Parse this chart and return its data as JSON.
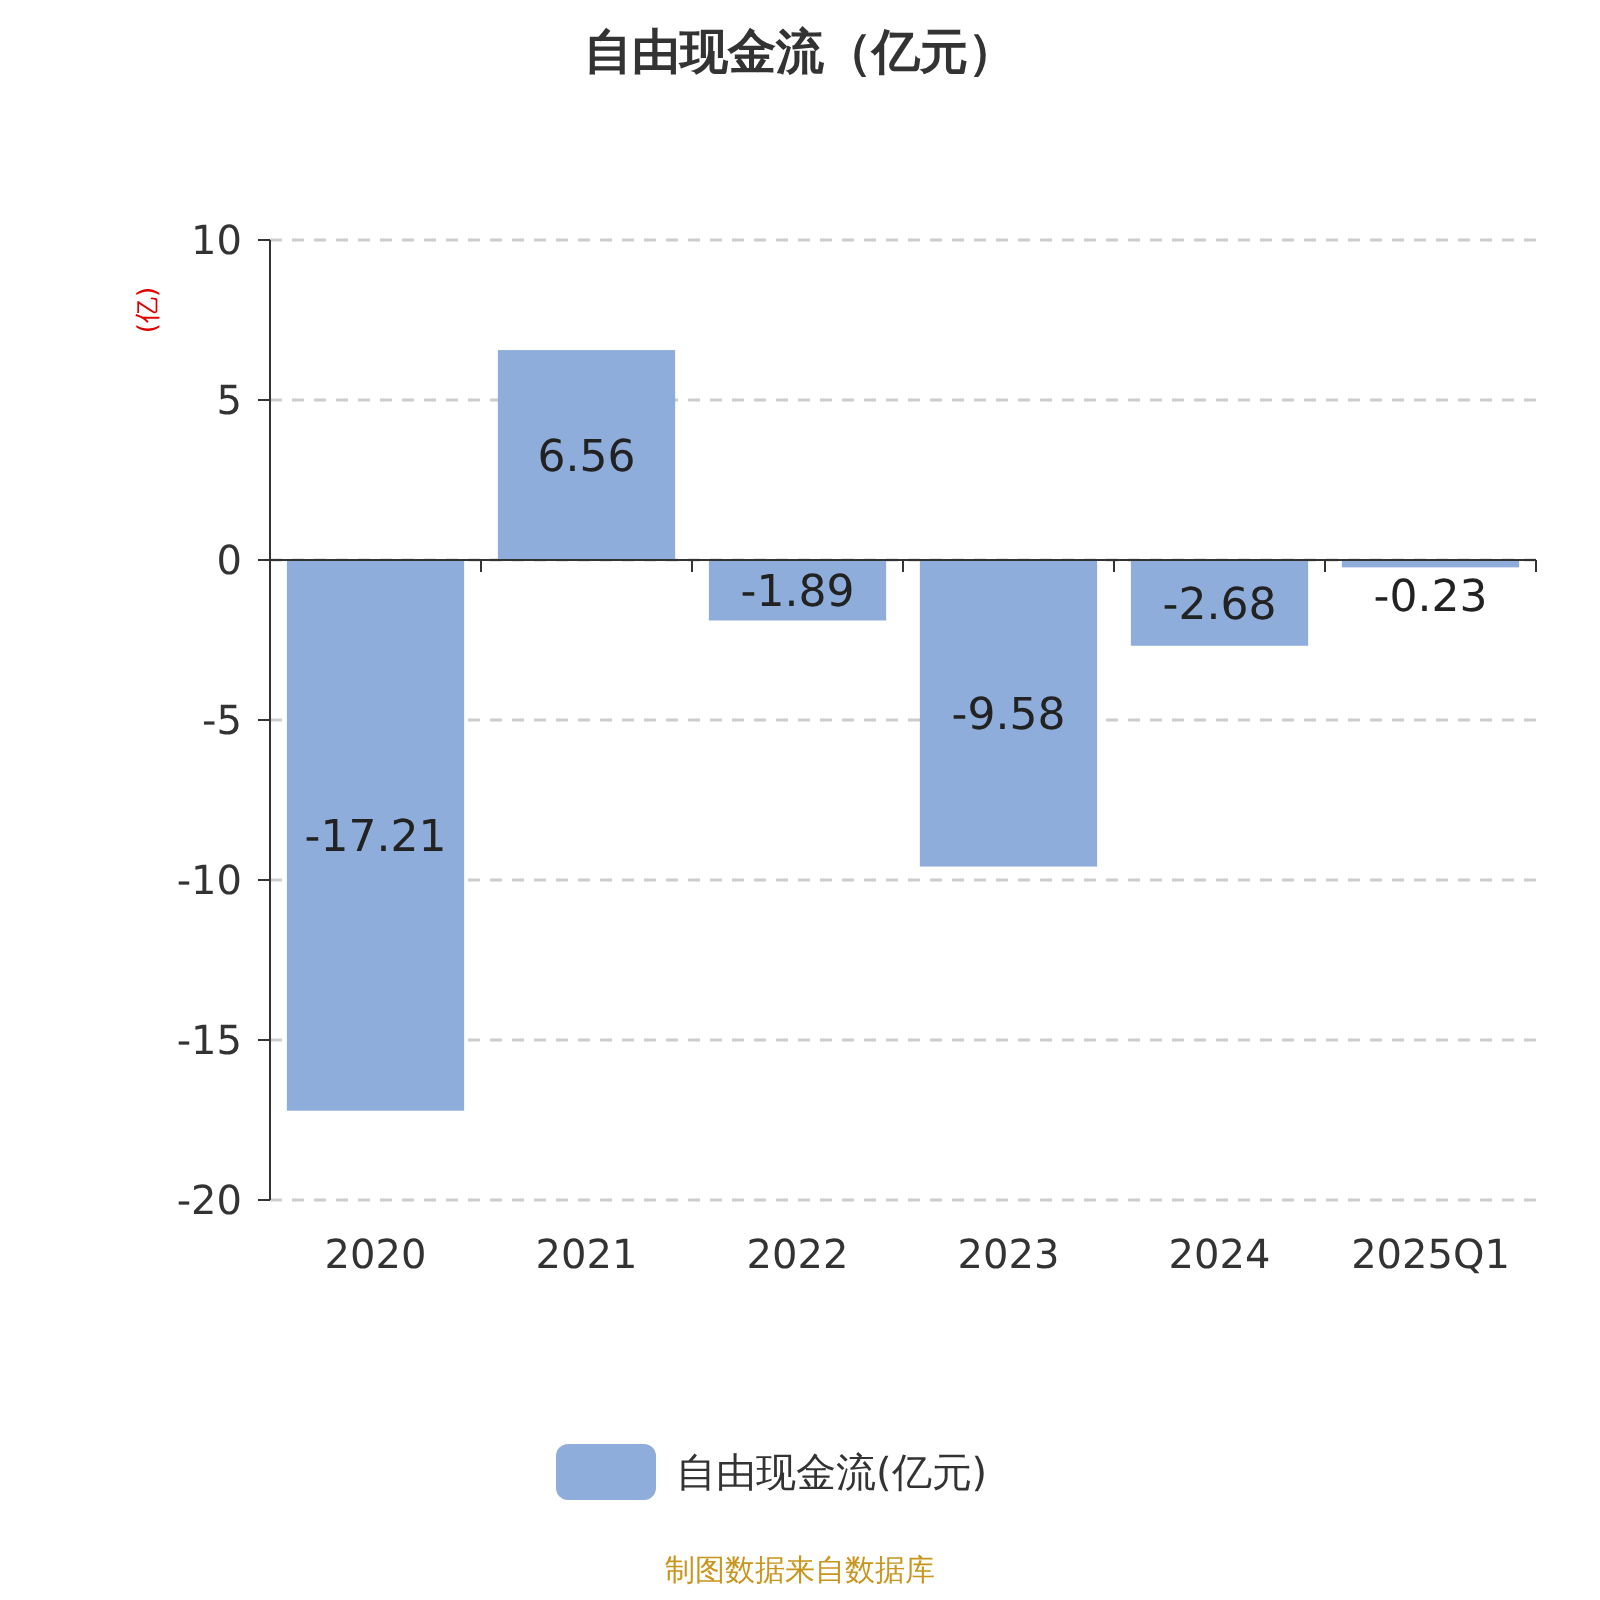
{
  "chart_data": {
    "type": "bar",
    "title": "自由现金流（亿元）",
    "ylabel": "(亿)",
    "categories": [
      "2020",
      "2021",
      "2022",
      "2023",
      "2024",
      "2025Q1"
    ],
    "series": [
      {
        "name": "自由现金流(亿元)",
        "color": "#8eaddb",
        "values": [
          -17.21,
          6.56,
          -1.89,
          -9.58,
          -2.68,
          -0.23
        ]
      }
    ],
    "ylim": [
      -20,
      10
    ],
    "yticks": [
      -20,
      -15,
      -10,
      -5,
      0,
      5,
      10
    ],
    "grid": "y",
    "legend": "bottom",
    "data_labels": true,
    "annotations": [
      "制图数据来自数据库"
    ]
  }
}
